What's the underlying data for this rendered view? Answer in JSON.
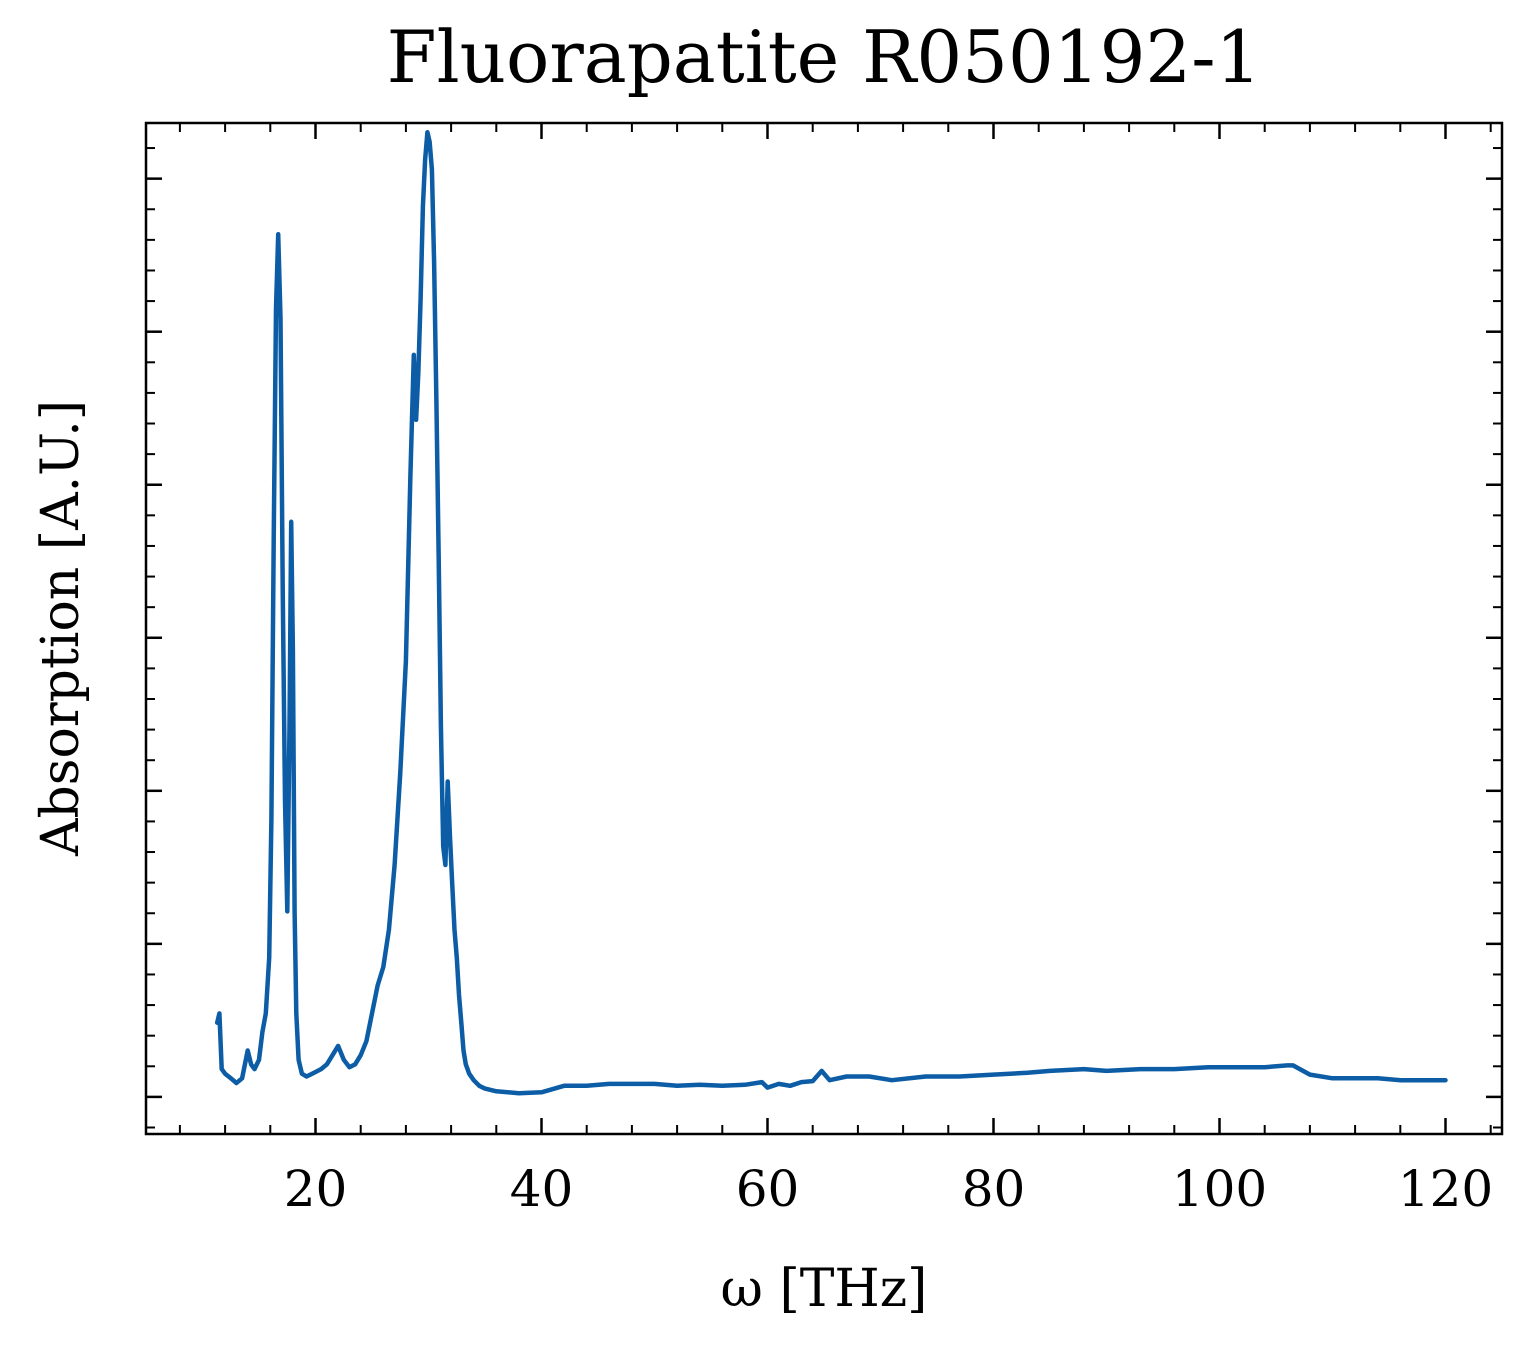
{
  "chart_data": {
    "type": "line",
    "title": "Fluorapatite R050192-1",
    "xlabel": "ω [THz]",
    "ylabel": "Absorption [A.U.]",
    "xlim": [
      5,
      125
    ],
    "ylim": [
      -0.04,
      1.05
    ],
    "x_ticks": [
      20,
      40,
      60,
      80,
      100,
      120
    ],
    "x_tick_labels": [
      "20",
      "40",
      "60",
      "80",
      "100",
      "120"
    ],
    "x_minor_step": 4,
    "y_ticks": [
      0.0,
      0.165,
      0.33,
      0.495,
      0.66,
      0.825,
      0.99
    ],
    "y_tick_labels": [],
    "y_minor_step": 0.033,
    "grid": false,
    "legend": "none",
    "series": [
      {
        "color": "#0c5da5",
        "x": [
          11.3,
          11.5,
          11.7,
          12.0,
          12.5,
          13.0,
          13.5,
          14.0,
          14.3,
          14.6,
          15.0,
          15.3,
          15.6,
          15.9,
          16.1,
          16.3,
          16.5,
          16.7,
          16.9,
          17.1,
          17.3,
          17.5,
          17.7,
          17.85,
          18.0,
          18.15,
          18.3,
          18.5,
          18.8,
          19.2,
          19.7,
          20.5,
          21.0,
          21.5,
          22.0,
          22.5,
          23.0,
          23.5,
          24.0,
          24.5,
          25.0,
          25.5,
          26.0,
          26.5,
          27.0,
          27.5,
          28.0,
          28.4,
          28.7,
          28.9,
          29.1,
          29.3,
          29.5,
          29.7,
          29.9,
          30.1,
          30.3,
          30.5,
          30.7,
          30.9,
          31.1,
          31.3,
          31.5,
          31.7,
          31.9,
          32.1,
          32.3,
          32.5,
          32.7,
          32.9,
          33.1,
          33.3,
          33.6,
          34.0,
          34.5,
          35.0,
          36.0,
          38.0,
          40.0,
          42.0,
          44.0,
          46.0,
          48.0,
          50.0,
          52.0,
          54.0,
          56.0,
          58.0,
          59.5,
          60.0,
          61.0,
          62.0,
          63.0,
          64.0,
          64.8,
          65.5,
          67.0,
          69.0,
          71.0,
          74.0,
          77.0,
          80.0,
          83.0,
          85.0,
          88.0,
          90.0,
          93.0,
          96.0,
          99.0,
          102.0,
          104.0,
          106.0,
          106.5,
          108.0,
          110.0,
          112.0,
          114.0,
          116.0,
          118.0,
          120.0
        ],
        "y": [
          0.08,
          0.09,
          0.03,
          0.025,
          0.02,
          0.015,
          0.02,
          0.05,
          0.035,
          0.03,
          0.04,
          0.07,
          0.09,
          0.15,
          0.3,
          0.6,
          0.85,
          0.93,
          0.84,
          0.55,
          0.32,
          0.2,
          0.4,
          0.62,
          0.48,
          0.2,
          0.09,
          0.04,
          0.025,
          0.022,
          0.025,
          0.03,
          0.035,
          0.045,
          0.055,
          0.04,
          0.032,
          0.035,
          0.045,
          0.06,
          0.09,
          0.12,
          0.14,
          0.18,
          0.25,
          0.35,
          0.47,
          0.67,
          0.8,
          0.73,
          0.78,
          0.86,
          0.96,
          1.01,
          1.04,
          1.03,
          1.0,
          0.9,
          0.75,
          0.58,
          0.4,
          0.27,
          0.25,
          0.34,
          0.28,
          0.23,
          0.18,
          0.15,
          0.11,
          0.08,
          0.05,
          0.035,
          0.025,
          0.018,
          0.012,
          0.009,
          0.006,
          0.004,
          0.005,
          0.012,
          0.012,
          0.014,
          0.014,
          0.014,
          0.012,
          0.013,
          0.012,
          0.013,
          0.016,
          0.01,
          0.014,
          0.012,
          0.016,
          0.017,
          0.028,
          0.018,
          0.022,
          0.022,
          0.018,
          0.022,
          0.022,
          0.024,
          0.026,
          0.028,
          0.03,
          0.028,
          0.03,
          0.03,
          0.032,
          0.032,
          0.032,
          0.034,
          0.034,
          0.024,
          0.02,
          0.02,
          0.02,
          0.018,
          0.018,
          0.018
        ]
      }
    ]
  }
}
